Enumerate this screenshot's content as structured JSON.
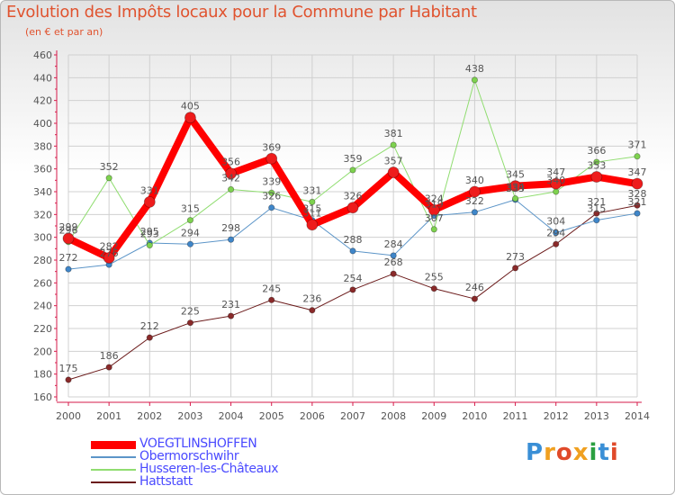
{
  "header": {
    "title": "Evolution des Impôts locaux pour la Commune par Habitant",
    "subtitle": "(en € et par an)"
  },
  "logo": {
    "text": "Proxiti",
    "letters": [
      "P",
      "r",
      "o",
      "x",
      "i",
      "t",
      "i"
    ],
    "colors": [
      "#3a8fd6",
      "#f0a020",
      "#e04a2a",
      "#f0a020",
      "#2a9f40",
      "#3a8fd6",
      "#e04a2a"
    ]
  },
  "colors": {
    "title": "#e0532f",
    "axis": "#d61a4a",
    "grid": "#d0d0d0",
    "label": "#555555",
    "legend_text": "#4a4aff"
  },
  "chart_data": {
    "type": "line",
    "title": "Evolution des Impôts locaux pour la Commune par Habitant",
    "subtitle": "(en € et par an)",
    "xlabel": "",
    "ylabel": "",
    "x": [
      "2000",
      "2001",
      "2002",
      "2003",
      "2004",
      "2005",
      "2006",
      "2007",
      "2008",
      "2009",
      "2010",
      "2011",
      "2012",
      "2013",
      "2014"
    ],
    "ylim": [
      160,
      460
    ],
    "yticks": [
      160,
      180,
      200,
      220,
      240,
      260,
      280,
      300,
      320,
      340,
      360,
      380,
      400,
      420,
      440,
      460
    ],
    "grid": true,
    "legend_position": "bottom-left",
    "series": [
      {
        "name": "Hattstatt",
        "color": "#6b1a1a",
        "marker": "#8a2a2a",
        "width": 1,
        "values": [
          175,
          186,
          212,
          225,
          231,
          245,
          236,
          254,
          268,
          255,
          246,
          273,
          294,
          321,
          328
        ]
      },
      {
        "name": "Obermorschwihr",
        "color": "#5c95c8",
        "marker": "#3f86c9",
        "width": 1,
        "values": [
          272,
          276,
          295,
          294,
          298,
          326,
          315,
          288,
          284,
          319,
          322,
          333,
          304,
          315,
          321
        ]
      },
      {
        "name": "Husseren-les-Châteaux",
        "color": "#90dd70",
        "marker": "#7ed24f",
        "width": 1,
        "values": [
          296,
          352,
          293,
          315,
          342,
          339,
          331,
          359,
          381,
          307,
          438,
          334,
          340,
          366,
          371
        ]
      },
      {
        "name": "VOEGTLINSHOFFEN",
        "color": "#ff0000",
        "marker": "#ee1c1c",
        "width": 8,
        "values": [
          299,
          282,
          331,
          405,
          356,
          369,
          311,
          326,
          357,
          324,
          340,
          345,
          347,
          353,
          347
        ]
      }
    ],
    "legend_order": [
      "VOEGTLINSHOFFEN",
      "Obermorschwihr",
      "Husseren-les-Châteaux",
      "Hattstatt"
    ]
  }
}
